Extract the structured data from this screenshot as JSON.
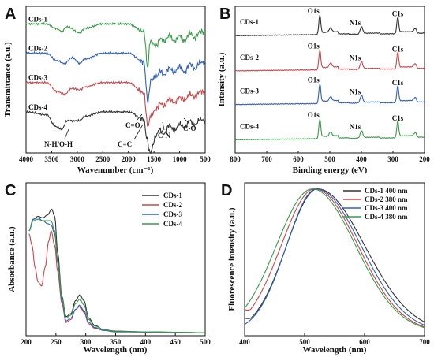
{
  "chart_data": [
    {
      "panel": "A",
      "type": "line",
      "xlabel": "Wavenumber (cm⁻¹)",
      "ylabel": "Transmittance (a.u.)",
      "xlim": [
        4000,
        500
      ],
      "xticks": [
        "4000",
        "3500",
        "3000",
        "2500",
        "2000",
        "1500",
        "1000",
        "500"
      ],
      "series": [
        {
          "name": "CDs-1",
          "color": "#3a9a4a",
          "offset": 0.88,
          "points": [
            [
              4000,
              0.0
            ],
            [
              3600,
              0.0
            ],
            [
              3420,
              -0.03
            ],
            [
              3300,
              -0.05
            ],
            [
              3200,
              -0.02
            ],
            [
              2950,
              -0.06
            ],
            [
              2850,
              -0.03
            ],
            [
              2500,
              0.0
            ],
            [
              2000,
              0.0
            ],
            [
              1700,
              -0.05
            ],
            [
              1620,
              -0.3
            ],
            [
              1580,
              -0.12
            ],
            [
              1450,
              -0.15
            ],
            [
              1380,
              -0.1
            ],
            [
              1300,
              -0.12
            ],
            [
              1200,
              -0.08
            ],
            [
              1100,
              -0.12
            ],
            [
              1000,
              -0.08
            ],
            [
              900,
              -0.12
            ],
            [
              800,
              -0.06
            ],
            [
              700,
              -0.1
            ],
            [
              600,
              -0.05
            ],
            [
              500,
              -0.06
            ]
          ]
        },
        {
          "name": "CDs-2",
          "color": "#2f5fbf",
          "offset": 0.68,
          "points": [
            [
              4000,
              0.0
            ],
            [
              3600,
              0.0
            ],
            [
              3400,
              -0.05
            ],
            [
              3250,
              -0.07
            ],
            [
              3100,
              -0.03
            ],
            [
              2950,
              -0.07
            ],
            [
              2850,
              -0.04
            ],
            [
              2500,
              0.0
            ],
            [
              2000,
              0.0
            ],
            [
              1700,
              -0.06
            ],
            [
              1620,
              -0.33
            ],
            [
              1560,
              -0.18
            ],
            [
              1450,
              -0.16
            ],
            [
              1380,
              -0.12
            ],
            [
              1300,
              -0.15
            ],
            [
              1200,
              -0.1
            ],
            [
              1100,
              -0.13
            ],
            [
              1000,
              -0.09
            ],
            [
              900,
              -0.13
            ],
            [
              800,
              -0.07
            ],
            [
              700,
              -0.11
            ],
            [
              600,
              -0.06
            ],
            [
              500,
              -0.07
            ]
          ]
        },
        {
          "name": "CDs-3",
          "color": "#c8474a",
          "offset": 0.48,
          "points": [
            [
              4000,
              0.0
            ],
            [
              3600,
              0.0
            ],
            [
              3400,
              -0.06
            ],
            [
              3250,
              -0.08
            ],
            [
              3100,
              -0.04
            ],
            [
              2950,
              -0.05
            ],
            [
              2850,
              -0.03
            ],
            [
              2500,
              0.0
            ],
            [
              2000,
              0.0
            ],
            [
              1700,
              -0.07
            ],
            [
              1620,
              -0.3
            ],
            [
              1560,
              -0.22
            ],
            [
              1450,
              -0.18
            ],
            [
              1380,
              -0.14
            ],
            [
              1300,
              -0.16
            ],
            [
              1200,
              -0.11
            ],
            [
              1100,
              -0.14
            ],
            [
              1000,
              -0.1
            ],
            [
              900,
              -0.12
            ],
            [
              800,
              -0.08
            ],
            [
              700,
              -0.1
            ],
            [
              600,
              -0.06
            ],
            [
              500,
              -0.07
            ]
          ]
        },
        {
          "name": "CDs-4",
          "color": "#333333",
          "offset": 0.28,
          "points": [
            [
              4000,
              0.0
            ],
            [
              3600,
              -0.02
            ],
            [
              3420,
              -0.1
            ],
            [
              3300,
              -0.12
            ],
            [
              3200,
              -0.06
            ],
            [
              2950,
              -0.06
            ],
            [
              2850,
              -0.03
            ],
            [
              2500,
              0.0
            ],
            [
              2000,
              0.0
            ],
            [
              1700,
              -0.05
            ],
            [
              1640,
              -0.18
            ],
            [
              1580,
              -0.28
            ],
            [
              1450,
              -0.16
            ],
            [
              1400,
              -0.12
            ],
            [
              1300,
              -0.15
            ],
            [
              1200,
              -0.09
            ],
            [
              1100,
              -0.13
            ],
            [
              1000,
              -0.08
            ],
            [
              900,
              -0.11
            ],
            [
              800,
              -0.06
            ],
            [
              700,
              -0.09
            ],
            [
              600,
              -0.05
            ],
            [
              500,
              -0.06
            ]
          ]
        }
      ],
      "annotations": [
        "N-H/O-H",
        "C=O",
        "C=C",
        "C-N",
        "C-O"
      ]
    },
    {
      "panel": "B",
      "type": "line",
      "xlabel": "Binding energy (eV)",
      "ylabel": "Intensity (a.u.)",
      "xlim": [
        800,
        200
      ],
      "xticks": [
        "800",
        "700",
        "600",
        "500",
        "400",
        "300",
        "200"
      ],
      "series": [
        {
          "name": "CDs-1",
          "color": "#333333",
          "offset": 0.8
        },
        {
          "name": "CDs-2",
          "color": "#c8474a",
          "offset": 0.56
        },
        {
          "name": "CDs-3",
          "color": "#2f5fbf",
          "offset": 0.33
        },
        {
          "name": "CDs-4",
          "color": "#3a9a4a",
          "offset": 0.09
        }
      ],
      "peaks": [
        {
          "label": "O1s",
          "x": 532,
          "h": 0.13
        },
        {
          "label": "",
          "x": 498,
          "h": 0.03
        },
        {
          "label": "N1s",
          "x": 400,
          "h": 0.05
        },
        {
          "label": "C1s",
          "x": 285,
          "h": 0.11
        },
        {
          "label": "",
          "x": 230,
          "h": 0.02
        }
      ]
    },
    {
      "panel": "C",
      "type": "line",
      "xlabel": "Wavelength (nm)",
      "ylabel": "Absorbance (a.u.)",
      "xlim": [
        200,
        500
      ],
      "xticks": [
        "200",
        "250",
        "300",
        "350",
        "400",
        "450",
        "500"
      ],
      "legend": "top-right",
      "series": [
        {
          "name": "CDs-1",
          "color": "#333333",
          "points": [
            [
              205,
              0.7
            ],
            [
              212,
              0.78
            ],
            [
              220,
              0.8
            ],
            [
              228,
              0.79
            ],
            [
              236,
              0.81
            ],
            [
              243,
              0.85
            ],
            [
              248,
              0.8
            ],
            [
              253,
              0.55
            ],
            [
              260,
              0.25
            ],
            [
              267,
              0.11
            ],
            [
              275,
              0.13
            ],
            [
              283,
              0.22
            ],
            [
              290,
              0.26
            ],
            [
              297,
              0.22
            ],
            [
              305,
              0.1
            ],
            [
              315,
              0.05
            ],
            [
              330,
              0.02
            ],
            [
              350,
              0.01
            ],
            [
              400,
              0.005
            ],
            [
              500,
              0.0
            ]
          ]
        },
        {
          "name": "CDs-2",
          "color": "#c8474a",
          "points": [
            [
              205,
              0.68
            ],
            [
              210,
              0.6
            ],
            [
              215,
              0.45
            ],
            [
              220,
              0.35
            ],
            [
              226,
              0.32
            ],
            [
              232,
              0.45
            ],
            [
              238,
              0.63
            ],
            [
              242,
              0.7
            ],
            [
              248,
              0.6
            ],
            [
              253,
              0.42
            ],
            [
              260,
              0.2
            ],
            [
              267,
              0.07
            ],
            [
              275,
              0.09
            ],
            [
              283,
              0.16
            ],
            [
              290,
              0.18
            ],
            [
              297,
              0.14
            ],
            [
              305,
              0.06
            ],
            [
              315,
              0.03
            ],
            [
              330,
              0.015
            ],
            [
              350,
              0.005
            ],
            [
              500,
              0.0
            ]
          ]
        },
        {
          "name": "CDs-3",
          "color": "#2f5fbf",
          "points": [
            [
              205,
              0.7
            ],
            [
              212,
              0.78
            ],
            [
              220,
              0.79
            ],
            [
              228,
              0.77
            ],
            [
              236,
              0.75
            ],
            [
              242,
              0.74
            ],
            [
              248,
              0.68
            ],
            [
              253,
              0.48
            ],
            [
              260,
              0.22
            ],
            [
              267,
              0.08
            ],
            [
              275,
              0.1
            ],
            [
              283,
              0.16
            ],
            [
              290,
              0.19
            ],
            [
              297,
              0.15
            ],
            [
              305,
              0.07
            ],
            [
              315,
              0.035
            ],
            [
              330,
              0.015
            ],
            [
              350,
              0.005
            ],
            [
              500,
              0.0
            ]
          ]
        },
        {
          "name": "CDs-4",
          "color": "#3a9a4a",
          "points": [
            [
              205,
              0.7
            ],
            [
              212,
              0.77
            ],
            [
              220,
              0.78
            ],
            [
              228,
              0.77
            ],
            [
              236,
              0.77
            ],
            [
              242,
              0.77
            ],
            [
              248,
              0.7
            ],
            [
              253,
              0.5
            ],
            [
              260,
              0.24
            ],
            [
              267,
              0.1
            ],
            [
              275,
              0.12
            ],
            [
              283,
              0.2
            ],
            [
              290,
              0.23
            ],
            [
              297,
              0.19
            ],
            [
              305,
              0.09
            ],
            [
              315,
              0.045
            ],
            [
              330,
              0.02
            ],
            [
              350,
              0.007
            ],
            [
              500,
              0.0
            ]
          ]
        }
      ]
    },
    {
      "panel": "D",
      "type": "line",
      "xlabel": "Wavelength (nm)",
      "ylabel": "Fluorescence intensity (a.u.)",
      "xlim": [
        400,
        700
      ],
      "xticks": [
        "400",
        "500",
        "600",
        "700"
      ],
      "legend": "top-right",
      "series": [
        {
          "name": "CDs-1 400 nm",
          "color": "#333333",
          "peak": 522,
          "wl": 52,
          "wr": 78,
          "base": 0.1
        },
        {
          "name": "CDs-2 380 nm",
          "color": "#c8474a",
          "peak": 517,
          "wl": 56,
          "wr": 72,
          "base": 0.16
        },
        {
          "name": "CDs-3 400 nm",
          "color": "#2f5fbf",
          "peak": 520,
          "wl": 50,
          "wr": 74,
          "base": 0.06
        },
        {
          "name": "CDs-4 380 nm",
          "color": "#3a9a4a",
          "peak": 513,
          "wl": 60,
          "wr": 72,
          "base": 0.08
        }
      ]
    }
  ]
}
